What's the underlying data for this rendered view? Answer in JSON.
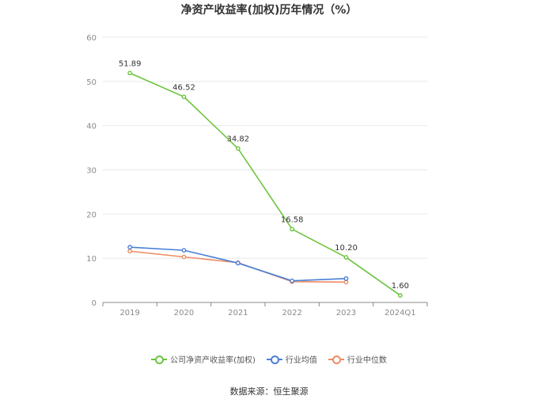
{
  "chart_data": {
    "type": "line",
    "title": "净资产收益率(加权)历年情况（%）",
    "categories": [
      "2019",
      "2020",
      "2021",
      "2022",
      "2023",
      "2024Q1"
    ],
    "ylim": [
      0,
      60
    ],
    "yticks": [
      0,
      10,
      20,
      30,
      40,
      50,
      60
    ],
    "grid": true,
    "legend_position": "bottom",
    "series": [
      {
        "name": "公司净资产收益率(加权)",
        "color": "#6cc43d",
        "values": [
          51.89,
          46.52,
          34.82,
          16.58,
          10.2,
          1.6
        ],
        "labels": [
          "51.89",
          "46.52",
          "34.82",
          "16.58",
          "10.20",
          "1.60"
        ]
      },
      {
        "name": "行业均值",
        "color": "#4a7fd6",
        "values": [
          12.5,
          11.8,
          8.9,
          4.9,
          5.4,
          null
        ]
      },
      {
        "name": "行业中位数",
        "color": "#ee8c62",
        "values": [
          11.6,
          10.3,
          9.0,
          4.7,
          4.6,
          null
        ]
      }
    ]
  },
  "source": "数据来源：恒生聚源"
}
